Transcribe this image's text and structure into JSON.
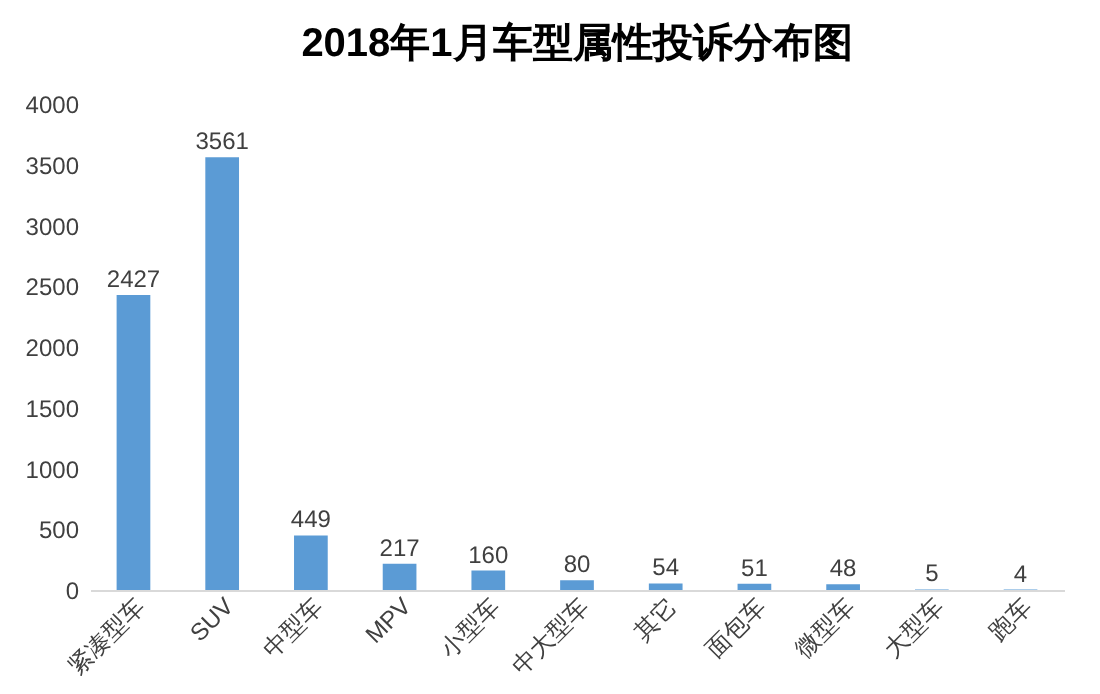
{
  "chart_data": {
    "type": "bar",
    "title": "2018年1月车型属性投诉分布图",
    "categories": [
      "紧凑型车",
      "SUV",
      "中型车",
      "MPV",
      "小型车",
      "中大型车",
      "其它",
      "面包车",
      "微型车",
      "大型车",
      "跑车"
    ],
    "values": [
      2427,
      3561,
      449,
      217,
      160,
      80,
      54,
      51,
      48,
      5,
      4
    ],
    "color": "#5b9bd5",
    "ylim": [
      0,
      4000
    ],
    "yticks": [
      0,
      500,
      1000,
      1500,
      2000,
      2500,
      3000,
      3500,
      4000
    ],
    "data_labels": true
  }
}
